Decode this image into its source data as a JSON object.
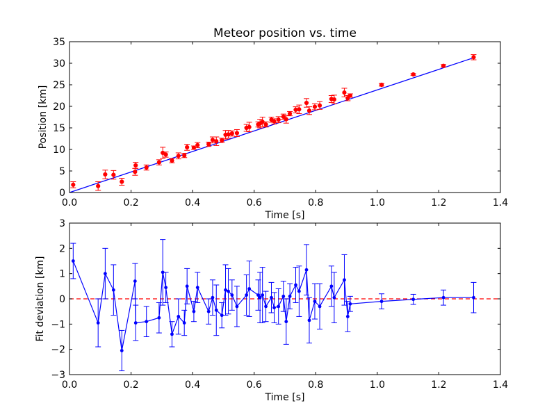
{
  "chart_data": [
    {
      "type": "scatter",
      "title": "Meteor position vs. time",
      "xlabel": "Time [s]",
      "ylabel": "Position [km]",
      "xlim": [
        0,
        1.4
      ],
      "ylim": [
        0,
        35
      ],
      "x_ticks": [
        "0.0",
        "0.2",
        "0.4",
        "0.6",
        "0.8",
        "1.0",
        "1.2",
        "1.4"
      ],
      "y_ticks": [
        "0",
        "5",
        "10",
        "15",
        "20",
        "25",
        "30",
        "35"
      ],
      "grid": false,
      "colors": {
        "points": "#ff0000",
        "fit": "#0000ff"
      },
      "fit_line": {
        "x": [
          0.0,
          1.31
        ],
        "y": [
          0.0,
          31.2
        ]
      },
      "series": [
        {
          "x": [
            0.012,
            0.093,
            0.116,
            0.143,
            0.17,
            0.213,
            0.215,
            0.25,
            0.291,
            0.303,
            0.313,
            0.333,
            0.354,
            0.373,
            0.382,
            0.404,
            0.416,
            0.452,
            0.465,
            0.477,
            0.495,
            0.507,
            0.516,
            0.528,
            0.544,
            0.575,
            0.584,
            0.613,
            0.619,
            0.627,
            0.638,
            0.656,
            0.665,
            0.679,
            0.695,
            0.704,
            0.716,
            0.735,
            0.746,
            0.77,
            0.779,
            0.797,
            0.813,
            0.851,
            0.86,
            0.893,
            0.904,
            0.912,
            1.014,
            1.117,
            1.215,
            1.313
          ],
          "y": [
            1.8,
            1.5,
            4.2,
            4.1,
            2.5,
            4.8,
            6.3,
            5.8,
            7.0,
            9.2,
            8.8,
            7.4,
            8.5,
            8.6,
            10.5,
            10.4,
            11.0,
            11.2,
            12.2,
            11.9,
            12.1,
            13.4,
            13.5,
            13.7,
            13.8,
            15.0,
            15.2,
            15.8,
            16.0,
            16.4,
            15.8,
            16.9,
            16.5,
            16.9,
            17.6,
            17.0,
            18.3,
            19.2,
            19.3,
            20.8,
            19.0,
            19.9,
            20.2,
            21.7,
            21.6,
            23.2,
            21.9,
            22.5,
            25.0,
            27.4,
            29.4,
            31.4
          ],
          "err": [
            0.7,
            1.0,
            1.0,
            1.0,
            0.8,
            0.8,
            0.7,
            0.6,
            0.6,
            1.3,
            0.6,
            0.5,
            0.7,
            0.5,
            0.7,
            0.4,
            0.6,
            0.5,
            0.7,
            1.0,
            0.5,
            1.0,
            0.9,
            0.6,
            0.8,
            0.8,
            1.1,
            0.6,
            1.0,
            1.1,
            0.6,
            0.6,
            0.6,
            0.7,
            0.6,
            0.9,
            0.5,
            0.7,
            1.0,
            1.0,
            0.9,
            0.7,
            0.9,
            0.8,
            1.0,
            1.0,
            0.6,
            0.4,
            0.3,
            0.2,
            0.3,
            0.6
          ]
        }
      ]
    },
    {
      "type": "line",
      "xlabel": "Time [s]",
      "ylabel": "Fit deviation [km]",
      "xlim": [
        0,
        1.4
      ],
      "ylim": [
        -3,
        3
      ],
      "x_ticks": [
        "0.0",
        "0.2",
        "0.4",
        "0.6",
        "0.8",
        "1.0",
        "1.2",
        "1.4"
      ],
      "y_ticks": [
        "−3",
        "−2",
        "−1",
        "0",
        "1",
        "2",
        "3"
      ],
      "grid": false,
      "colors": {
        "line": "#0000ff",
        "reference": "#ff0000"
      },
      "reference_line": {
        "y": 0,
        "style": "dashed"
      },
      "series": [
        {
          "x": [
            0.012,
            0.093,
            0.116,
            0.143,
            0.17,
            0.213,
            0.215,
            0.25,
            0.291,
            0.303,
            0.313,
            0.333,
            0.354,
            0.373,
            0.382,
            0.404,
            0.416,
            0.452,
            0.465,
            0.477,
            0.495,
            0.507,
            0.516,
            0.528,
            0.544,
            0.575,
            0.584,
            0.613,
            0.619,
            0.627,
            0.638,
            0.656,
            0.665,
            0.679,
            0.695,
            0.704,
            0.716,
            0.735,
            0.746,
            0.77,
            0.779,
            0.797,
            0.813,
            0.851,
            0.86,
            0.893,
            0.904,
            0.912,
            1.014,
            1.117,
            1.215,
            1.313
          ],
          "y": [
            1.5,
            -0.95,
            1.0,
            0.35,
            -2.05,
            0.7,
            -0.95,
            -0.9,
            -0.75,
            1.05,
            0.45,
            -1.4,
            -0.7,
            -0.95,
            0.5,
            -0.5,
            0.45,
            -0.5,
            0.05,
            -0.45,
            -0.65,
            0.35,
            0.3,
            0.15,
            -0.3,
            0.15,
            0.4,
            0.15,
            0.05,
            0.15,
            -0.3,
            0.05,
            -0.35,
            -0.3,
            0.1,
            -0.9,
            0.1,
            0.55,
            0.3,
            1.15,
            -0.85,
            -0.1,
            -0.3,
            0.5,
            0.05,
            0.75,
            -0.7,
            -0.2,
            -0.1,
            -0.02,
            0.05,
            0.05
          ],
          "err": [
            0.7,
            0.95,
            1.0,
            1.0,
            0.8,
            0.7,
            0.7,
            0.6,
            0.6,
            1.3,
            0.6,
            0.5,
            0.7,
            0.5,
            0.7,
            0.4,
            0.6,
            0.5,
            0.7,
            1.0,
            0.5,
            1.0,
            0.9,
            0.6,
            0.8,
            0.8,
            1.1,
            0.6,
            1.0,
            1.1,
            0.6,
            0.6,
            0.6,
            0.7,
            0.6,
            0.9,
            0.5,
            0.7,
            1.0,
            1.0,
            0.9,
            0.7,
            0.9,
            0.8,
            1.0,
            1.0,
            0.6,
            0.3,
            0.3,
            0.2,
            0.3,
            0.6
          ]
        }
      ]
    }
  ]
}
